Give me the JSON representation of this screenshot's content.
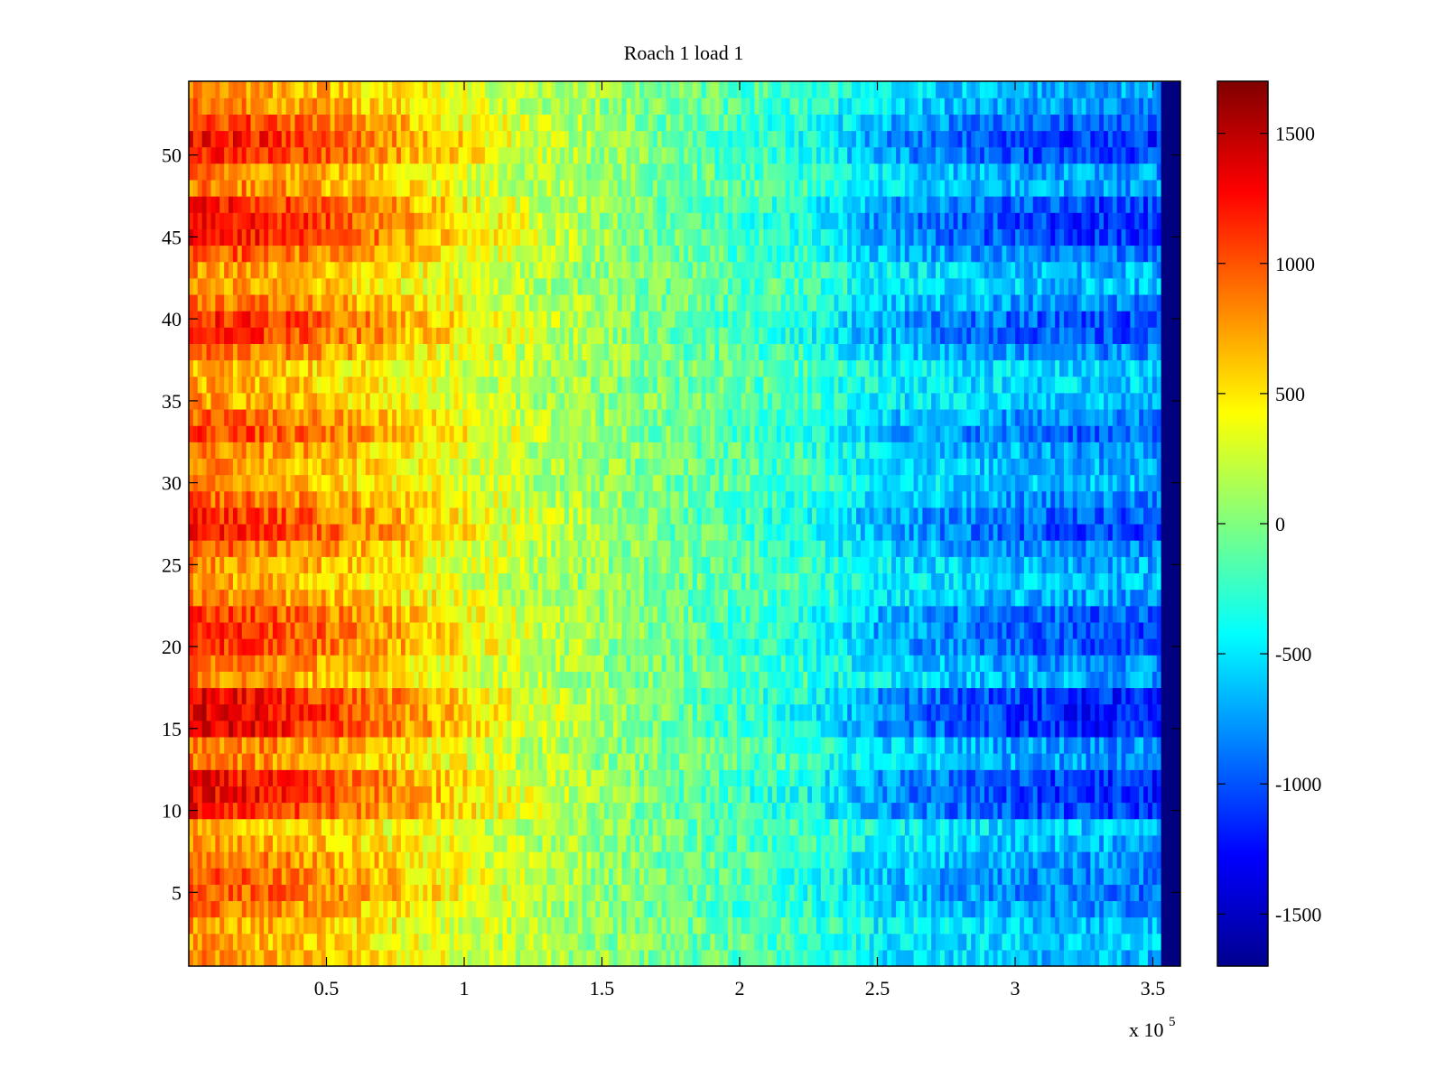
{
  "chart_data": {
    "type": "heatmap",
    "title": "Roach 1 load 1",
    "xlabel": "",
    "ylabel": "",
    "x_multiplier_label": "x 10",
    "x_multiplier_exponent": "5",
    "xlim": [
      0,
      3.6
    ],
    "ylim": [
      0.5,
      54.5
    ],
    "x_ticks": [
      0.5,
      1,
      1.5,
      2,
      2.5,
      3,
      3.5
    ],
    "x_tick_labels": [
      "0.5",
      "1",
      "1.5",
      "2",
      "2.5",
      "3",
      "3.5"
    ],
    "y_ticks": [
      5,
      10,
      15,
      20,
      25,
      30,
      35,
      40,
      45,
      50
    ],
    "y_tick_labels": [
      "5",
      "10",
      "15",
      "20",
      "25",
      "30",
      "35",
      "40",
      "45",
      "50"
    ],
    "colorbar": {
      "colormap": "jet",
      "clim": [
        -1700,
        1700
      ],
      "ticks": [
        -1500,
        -1000,
        -500,
        0,
        500,
        1000,
        1500
      ],
      "tick_labels": [
        "-1500",
        "-1000",
        "-500",
        "0",
        "500",
        "1000",
        "1500"
      ]
    },
    "rows": 54,
    "data_x_extent": [
      0,
      3.53
    ],
    "edge_value": -1700,
    "trend_x": [
      0.0,
      0.25,
      0.5,
      0.75,
      1.0,
      1.25,
      1.5,
      1.75,
      2.0,
      2.25,
      2.5,
      2.75,
      3.0,
      3.25,
      3.5
    ],
    "trend_values": [
      1050,
      950,
      800,
      620,
      420,
      220,
      80,
      -60,
      -180,
      -300,
      -600,
      -720,
      -820,
      -880,
      -900
    ],
    "row_amplitude": [
      0.35,
      0.25,
      0.3,
      0.55,
      0.75,
      0.7,
      0.55,
      0.35,
      0.2,
      1.1,
      1.25,
      1.15,
      0.5,
      0.55,
      1.3,
      1.35,
      1.25,
      0.45,
      0.6,
      0.95,
      1.0,
      0.9,
      0.45,
      0.3,
      0.4,
      0.65,
      1.0,
      0.95,
      0.65,
      0.3,
      0.4,
      0.5,
      0.85,
      0.65,
      0.3,
      0.2,
      0.2,
      0.6,
      1.0,
      1.0,
      0.6,
      0.3,
      0.35,
      0.75,
      1.15,
      1.2,
      1.05,
      0.5,
      0.5,
      1.05,
      1.15,
      0.9,
      0.55,
      0.45
    ]
  }
}
